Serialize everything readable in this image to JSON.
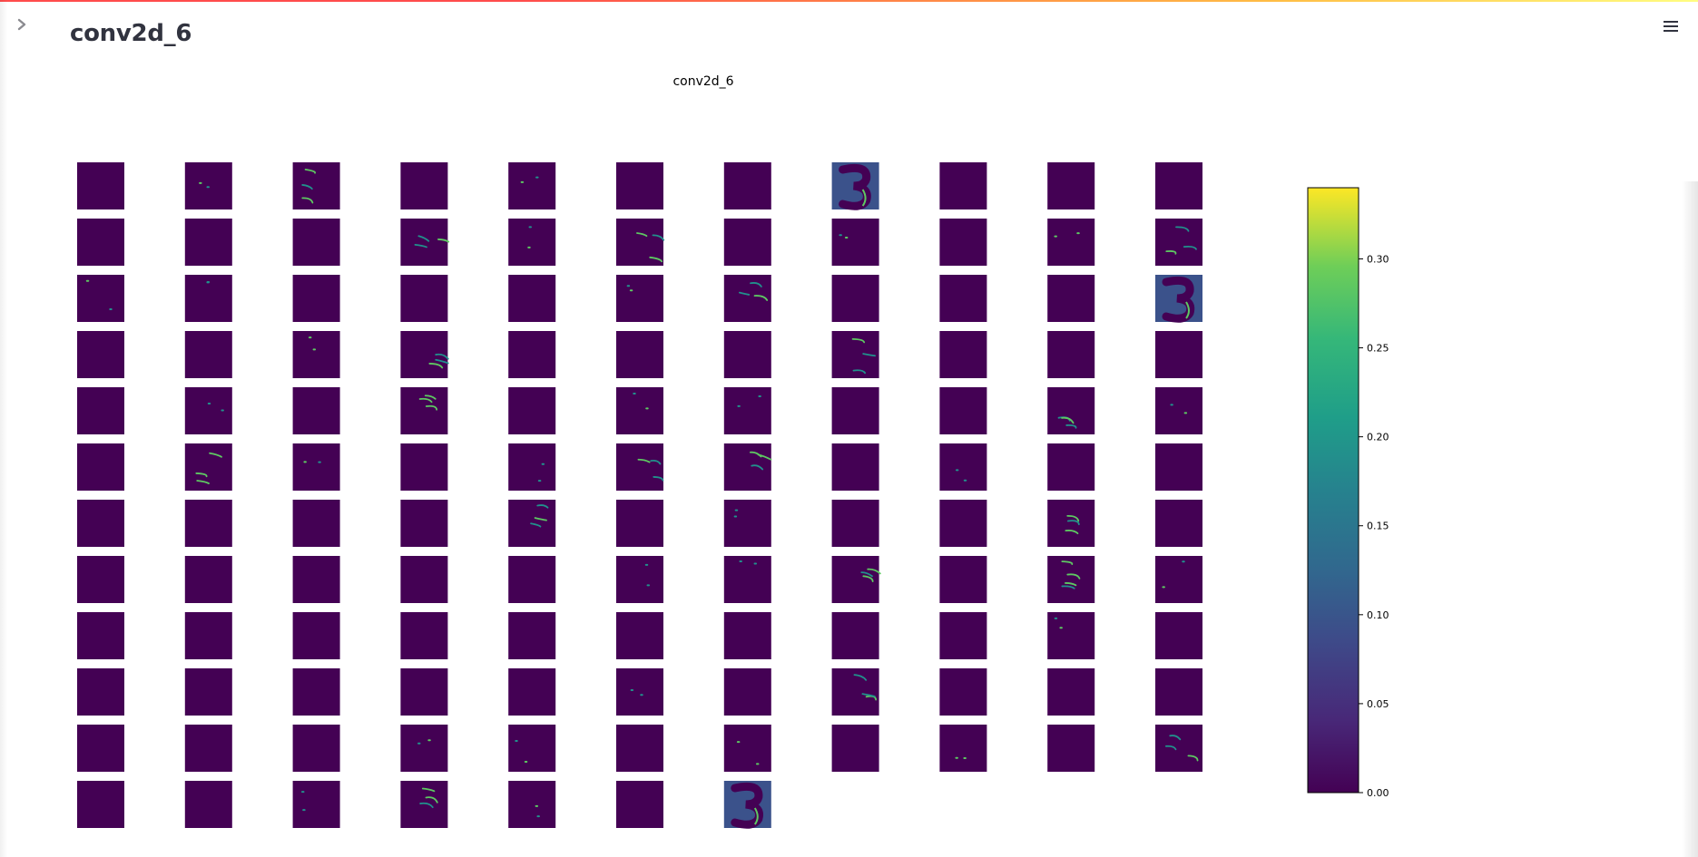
{
  "header": {
    "page_title": "conv2d_6",
    "sidebar_toggle_icon": "chevron-right-icon",
    "menu_icon": "hamburger-menu-icon"
  },
  "figure": {
    "title": "conv2d_6",
    "colormap": "viridis",
    "grid": {
      "rows": 12,
      "cols": 11,
      "total_maps": 128
    },
    "colors": {
      "dark": "#440154",
      "teal": "#21918c",
      "green": "#5ec962",
      "yellow": "#fde725",
      "accent_bar_start": "#ff4b4b",
      "accent_bar_end": "#fffd80"
    },
    "feature_map_intensity": [
      [
        0,
        1,
        2,
        0,
        1,
        0,
        0,
        4,
        0,
        0,
        0
      ],
      [
        0,
        0,
        0,
        2,
        1,
        2,
        0,
        1,
        0,
        1,
        2
      ],
      [
        1,
        1,
        0,
        0,
        0,
        1,
        2,
        0,
        0,
        0,
        4
      ],
      [
        0,
        0,
        1,
        2,
        0,
        0,
        0,
        2,
        0,
        0,
        0
      ],
      [
        0,
        1,
        0,
        2,
        0,
        1,
        1,
        0,
        0,
        2,
        1
      ],
      [
        0,
        2,
        1,
        0,
        1,
        2,
        2,
        0,
        1,
        0,
        0
      ],
      [
        0,
        0,
        0,
        0,
        2,
        0,
        1,
        0,
        0,
        2,
        0
      ],
      [
        0,
        0,
        0,
        0,
        0,
        1,
        1,
        2,
        0,
        3,
        1
      ],
      [
        0,
        0,
        0,
        0,
        0,
        0,
        0,
        0,
        0,
        1,
        0
      ],
      [
        0,
        0,
        0,
        0,
        0,
        1,
        0,
        2,
        0,
        0,
        0
      ],
      [
        0,
        0,
        0,
        1,
        1,
        0,
        1,
        0,
        1,
        0,
        2
      ],
      [
        0,
        0,
        1,
        2,
        1,
        0,
        4
      ]
    ]
  },
  "colorbar": {
    "min": 0.0,
    "max": 0.34,
    "ticks": [
      "0.00",
      "0.05",
      "0.10",
      "0.15",
      "0.20",
      "0.25",
      "0.30"
    ],
    "tick_values": [
      0.0,
      0.05,
      0.1,
      0.15,
      0.2,
      0.25,
      0.3
    ]
  }
}
